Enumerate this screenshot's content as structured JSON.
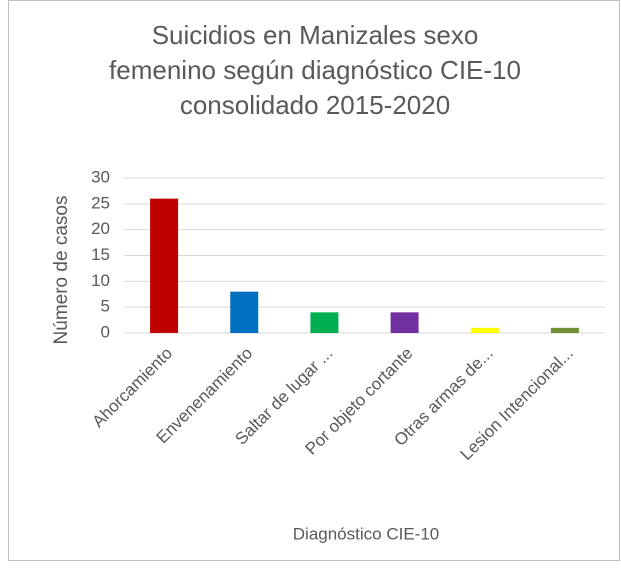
{
  "chart_data": {
    "type": "bar",
    "title": "Suicidios en Manizales sexo femenino según diagnóstico CIE-10 consolidado 2015-2020",
    "x_label": "Diagnóstico CIE-10",
    "y_label": "Número de casos",
    "categories": [
      "Ahorcamiento",
      "Envenenamiento",
      "Saltar de lugar ...",
      "Por objeto cortante",
      "Otras armas de...",
      "Lesion Intencional..."
    ],
    "values": [
      26,
      8,
      4,
      4,
      1,
      1
    ],
    "colors": [
      "#c00000",
      "#0070c0",
      "#00b050",
      "#7030a0",
      "#ffff00",
      "#70903a"
    ],
    "ylim": [
      0,
      30
    ],
    "yticks": [
      0,
      5,
      10,
      15,
      20,
      25,
      30
    ],
    "grid": true
  }
}
